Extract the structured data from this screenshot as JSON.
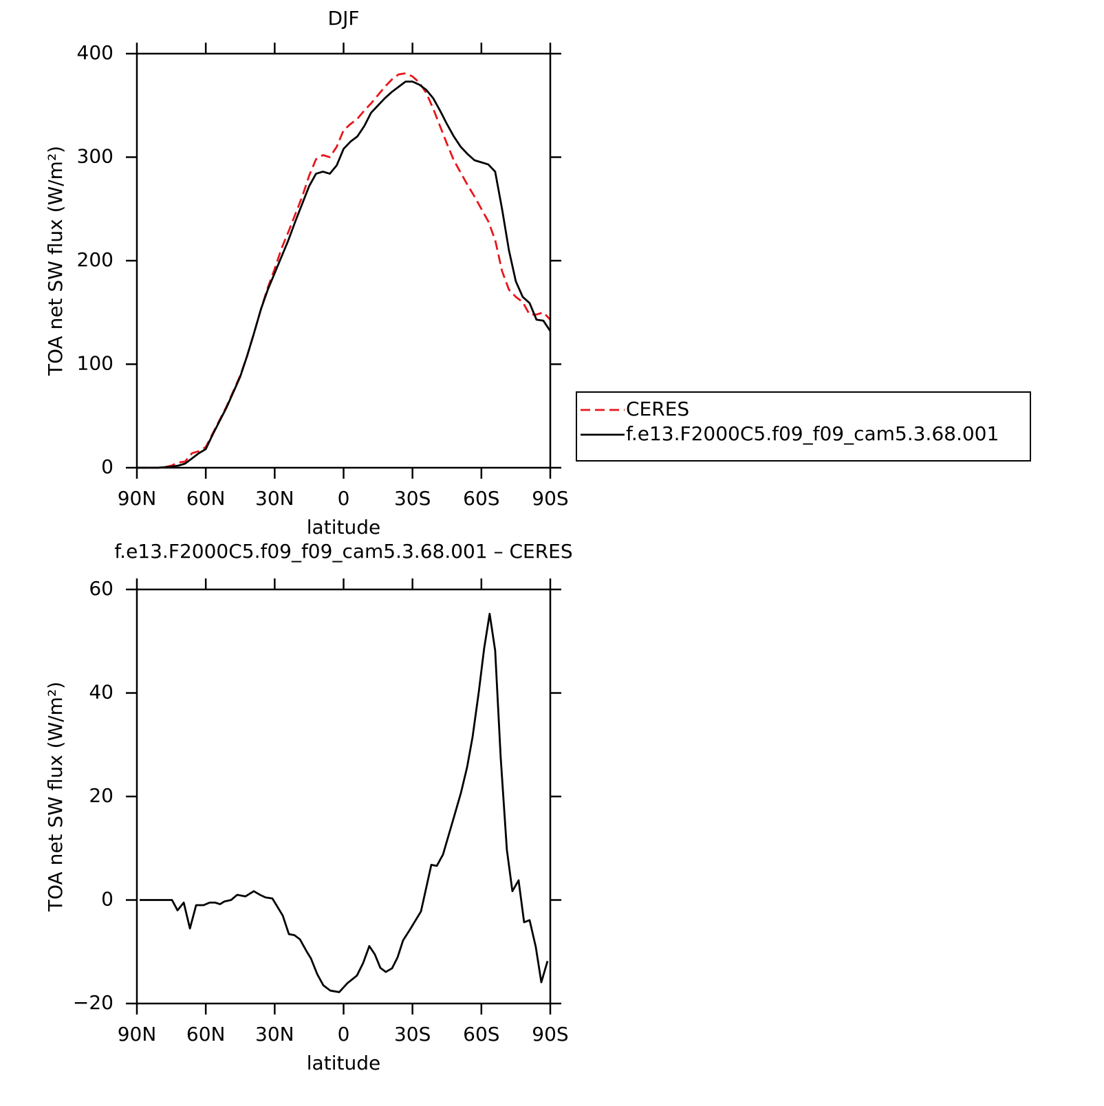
{
  "chart_data": [
    {
      "type": "line",
      "title": "DJF",
      "xlabel": "latitude",
      "ylabel": "TOA net SW flux (W/m²)",
      "xlim": [
        90,
        -90
      ],
      "xticks": [
        {
          "value": 90,
          "label": "90N"
        },
        {
          "value": 60,
          "label": "60N"
        },
        {
          "value": 30,
          "label": "30N"
        },
        0,
        {
          "value": -30,
          "label": "30S"
        },
        {
          "value": -60,
          "label": "60S"
        },
        {
          "value": -90,
          "label": "90S"
        }
      ],
      "ylim": [
        0,
        400
      ],
      "yticks": [
        0,
        100,
        200,
        300,
        400
      ],
      "legend": "outside-right",
      "x": [
        90,
        87,
        84,
        81,
        78,
        75,
        72,
        69,
        66,
        63,
        60,
        57,
        54,
        51,
        48,
        45,
        42,
        39,
        36,
        33,
        30,
        27,
        24,
        21,
        18,
        15,
        12,
        9,
        6,
        3,
        0,
        -3,
        -6,
        -9,
        -12,
        -15,
        -18,
        -21,
        -24,
        -27,
        -30,
        -33,
        -36,
        -39,
        -42,
        -45,
        -48,
        -51,
        -54,
        -57,
        -60,
        -63,
        -66,
        -69,
        -72,
        -75,
        -78,
        -81,
        -84,
        -87,
        -90
      ],
      "series": [
        {
          "name": "CERES",
          "color": "#e8161b",
          "dashed": true,
          "values": [
            0,
            0,
            0,
            0,
            0.5,
            2,
            5,
            6,
            14,
            16,
            20,
            33,
            46,
            59,
            74,
            89,
            108,
            130,
            153,
            174,
            192,
            212,
            228,
            245,
            262,
            282,
            298,
            302,
            300,
            310,
            326,
            332,
            337,
            345,
            352,
            360,
            368,
            375,
            380,
            381,
            378,
            372,
            362,
            347,
            330,
            313,
            297,
            285,
            273,
            262,
            250,
            238,
            220,
            190,
            172,
            165,
            160,
            148,
            148,
            150,
            143
          ]
        },
        {
          "name": "f.e13.F2000C5.f09_f09_cam5.3.68.001",
          "color": "#000000",
          "dashed": false,
          "values": [
            0,
            0,
            0,
            0,
            0.5,
            1,
            2,
            4,
            9,
            14,
            18,
            32,
            45,
            58,
            73,
            88,
            108,
            130,
            153,
            172,
            188,
            204,
            220,
            238,
            255,
            272,
            284,
            286,
            284,
            292,
            308,
            315,
            320,
            330,
            343,
            350,
            357,
            363,
            368,
            373,
            373,
            370,
            365,
            357,
            345,
            332,
            320,
            310,
            303,
            297,
            295,
            293,
            286,
            250,
            210,
            180,
            165,
            159,
            143,
            142,
            132
          ]
        }
      ]
    },
    {
      "type": "line",
      "title": "f.e13.F2000C5.f09_f09_cam5.3.68.001 – CERES",
      "xlabel": "latitude",
      "ylabel": "TOA net SW flux (W/m²)",
      "xlim": [
        90,
        -90
      ],
      "xticks": [
        {
          "value": 90,
          "label": "90N"
        },
        {
          "value": 60,
          "label": "60N"
        },
        {
          "value": 30,
          "label": "30N"
        },
        0,
        {
          "value": -30,
          "label": "30S"
        },
        {
          "value": -60,
          "label": "60S"
        },
        {
          "value": -90,
          "label": "90S"
        }
      ],
      "ylim": [
        -20,
        60
      ],
      "yticks": [
        {
          "value": -20,
          "label": "−20"
        },
        0,
        20,
        40,
        60
      ],
      "x": [
        88.8,
        74.7,
        72.3,
        69.6,
        66.9,
        64.2,
        61.0,
        58.3,
        55.9,
        53.8,
        52.0,
        49.0,
        46.3,
        42.7,
        39.1,
        36.4,
        34.0,
        31.0,
        26.5,
        23.8,
        21.4,
        19.0,
        16.0,
        14.2,
        11.5,
        8.8,
        5.8,
        1.9,
        -1.6,
        -5.8,
        -8.5,
        -11.2,
        -13.6,
        -16.0,
        -18.4,
        -21.1,
        -23.5,
        -25.9,
        -29.2,
        -33.7,
        -38.2,
        -40.6,
        -43.3,
        -48.1,
        -51.1,
        -53.8,
        -56.2,
        -58.9,
        -61.2,
        -63.6,
        -66.0,
        -68.4,
        -71.1,
        -73.5,
        -76.2,
        -78.6,
        -81.0,
        -83.7,
        -86.1,
        -88.8
      ],
      "series": [
        {
          "color": "#000000",
          "dashed": false,
          "values": [
            0,
            0,
            -2,
            -0.5,
            -5.5,
            -1,
            -1,
            -0.5,
            -0.5,
            -0.8,
            -0.3,
            0,
            1,
            0.7,
            1.7,
            1,
            0.5,
            0.3,
            -3,
            -6.6,
            -6.8,
            -7.6,
            -10,
            -11.3,
            -14.3,
            -16.5,
            -17.5,
            -17.8,
            -16.1,
            -14.6,
            -12.2,
            -8.9,
            -10.5,
            -13.1,
            -13.9,
            -13.2,
            -11.1,
            -7.8,
            -5.5,
            -2.2,
            6.8,
            6.6,
            8.8,
            16.1,
            20.7,
            25.7,
            31.6,
            40.3,
            48.6,
            55.3,
            48.2,
            27.6,
            9.7,
            1.7,
            3.8,
            -4.3,
            -3.9,
            -9.1,
            -15.9,
            -11.8
          ]
        }
      ]
    }
  ]
}
